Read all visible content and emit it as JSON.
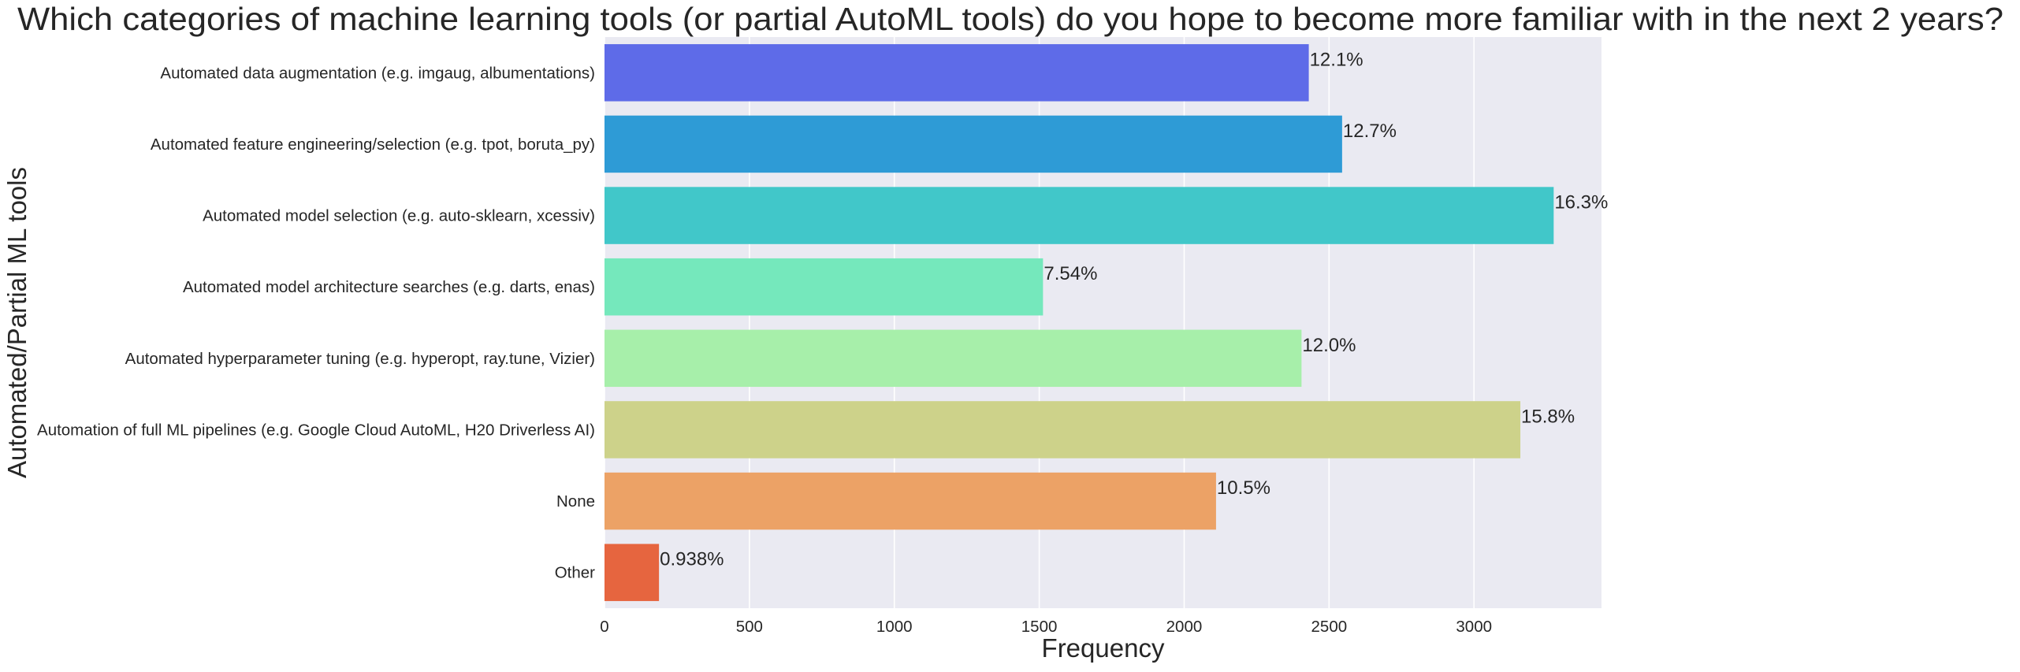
{
  "chart_data": {
    "type": "bar",
    "orientation": "horizontal",
    "title": "Which categories of machine learning tools (or partial AutoML tools) do you hope to become more familiar with in the next 2 years?",
    "xlabel": "Frequency",
    "ylabel": "Automated/Partial ML tools",
    "categories": [
      "Automated data augmentation (e.g. imgaug, albumentations)",
      "Automated feature engineering/selection (e.g. tpot, boruta_py)",
      "Automated model selection (e.g. auto-sklearn, xcessiv)",
      "Automated model architecture searches (e.g. darts, enas)",
      "Automated hyperparameter tuning (e.g. hyperopt, ray.tune, Vizier)",
      "Automation of full ML pipelines (e.g. Google Cloud AutoML, H20 Driverless AI)",
      "None",
      "Other"
    ],
    "values": [
      2430,
      2545,
      3275,
      1513,
      2405,
      3160,
      2110,
      188
    ],
    "data_labels": [
      "12.1%",
      "12.7%",
      "16.3%",
      "7.54%",
      "12.0%",
      "15.8%",
      "10.5%",
      "0.938%"
    ],
    "colors": [
      "#5e6be8",
      "#2e9bd6",
      "#41c7c9",
      "#75e8bc",
      "#a7efaa",
      "#cdd28a",
      "#eca266",
      "#e6653f"
    ],
    "xlim": [
      0,
      3440
    ],
    "xticks": [
      0,
      500,
      1000,
      1500,
      2000,
      2500,
      3000
    ],
    "xtick_labels": [
      "0",
      "500",
      "1000",
      "1500",
      "2000",
      "2500",
      "3000"
    ],
    "grid": "vertical",
    "background": "#eaeaf2",
    "grid_color": "#ffffff",
    "legend": "none"
  }
}
